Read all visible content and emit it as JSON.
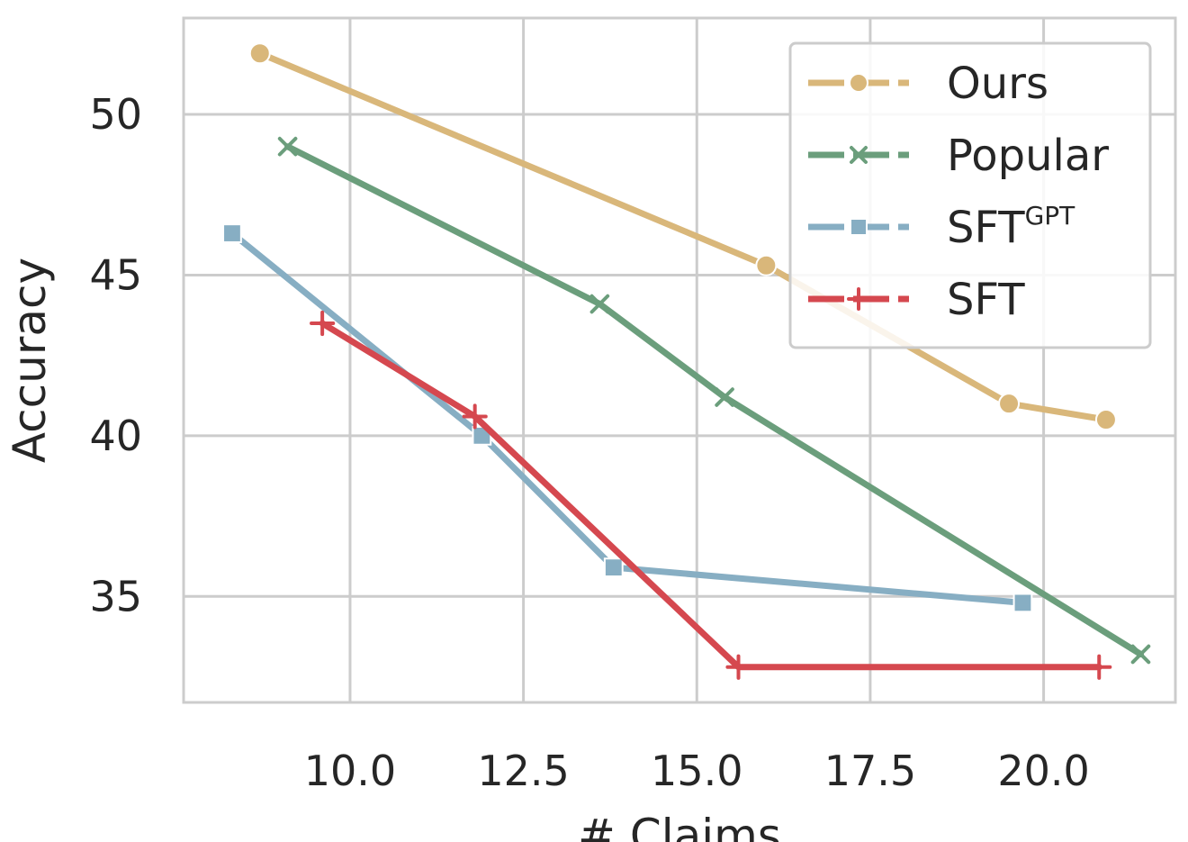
{
  "chart_data": {
    "type": "line",
    "xlabel": "# Claims",
    "ylabel": "Accuracy",
    "xlim": [
      7.6,
      21.9
    ],
    "ylim": [
      31.7,
      53.0
    ],
    "xticks": [
      10.0,
      12.5,
      15.0,
      17.5,
      20.0
    ],
    "xtick_labels": [
      "10.0",
      "12.5",
      "15.0",
      "17.5",
      "20.0"
    ],
    "yticks": [
      35,
      40,
      45,
      50
    ],
    "ytick_labels": [
      "35",
      "40",
      "45",
      "50"
    ],
    "grid": true,
    "legend_position": "top-right",
    "series": [
      {
        "name": "Ours",
        "color": "#d9b77a",
        "marker": "circle",
        "x": [
          8.7,
          16.0,
          19.5,
          20.9
        ],
        "y": [
          51.9,
          45.3,
          41.0,
          40.5
        ]
      },
      {
        "name": "Popular",
        "color": "#6b9e7c",
        "marker": "x",
        "x": [
          9.1,
          13.6,
          15.4,
          21.4
        ],
        "y": [
          49.0,
          44.1,
          41.2,
          33.2
        ]
      },
      {
        "name": "SFT",
        "name_sup": "GPT",
        "color": "#87aec3",
        "marker": "square",
        "x": [
          8.3,
          11.9,
          13.8,
          19.7
        ],
        "y": [
          46.3,
          40.0,
          35.9,
          34.8
        ]
      },
      {
        "name": "SFT",
        "color": "#d5484f",
        "marker": "plus",
        "x": [
          9.6,
          11.8,
          15.6,
          20.8
        ],
        "y": [
          43.5,
          40.6,
          32.8,
          32.8
        ]
      }
    ]
  }
}
